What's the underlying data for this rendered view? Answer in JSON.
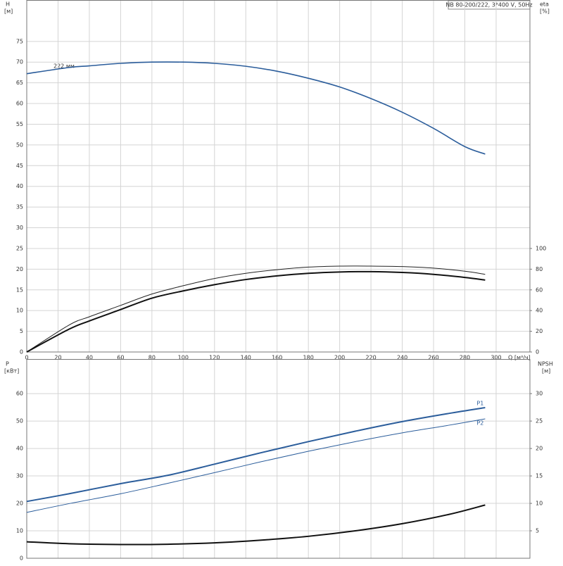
{
  "chart_data": [
    {
      "type": "line",
      "title": "NB 80-200/222, 3*400 V, 50Hz",
      "y_label": "H",
      "y_unit": "[м]",
      "y2_label": "eta",
      "y2_unit": "[%]",
      "x_label": "Q [м³/ч]",
      "annotation": "222 мм",
      "xlim": [
        0,
        321.6
      ],
      "xticks": [
        0,
        20,
        40,
        60,
        80,
        100,
        120,
        140,
        160,
        180,
        200,
        220,
        240,
        260,
        280,
        300
      ],
      "ylim": [
        0,
        85
      ],
      "yticks": [
        0,
        5,
        10,
        15,
        20,
        25,
        30,
        35,
        40,
        45,
        50,
        55,
        60,
        65,
        70,
        75
      ],
      "y2lim": [
        0,
        340
      ],
      "y2ticks": [
        0,
        20,
        40,
        60,
        80,
        100
      ],
      "grid": true,
      "x": [
        0,
        27,
        40,
        60,
        80,
        100,
        120,
        140,
        160,
        180,
        200,
        220,
        240,
        260,
        280,
        293
      ],
      "series": [
        {
          "color": "#2b5d9b",
          "line_width": 1.6,
          "values": [
            67.2,
            68.7,
            69.1,
            69.7,
            70.0,
            70.0,
            69.7,
            69.0,
            67.8,
            66.1,
            64.0,
            61.2,
            57.9,
            54.0,
            49.6,
            47.8
          ]
        },
        {
          "color": "#222222",
          "line_width": 1,
          "axis": "y2",
          "values": [
            0,
            26,
            34,
            45,
            56,
            64,
            71,
            76,
            79.5,
            82,
            83,
            83,
            82.5,
            81,
            78,
            75
          ]
        },
        {
          "color": "#111111",
          "line_width": 2,
          "axis": "y2",
          "values": [
            0,
            22,
            30,
            41,
            52,
            59,
            65,
            70,
            73.5,
            76,
            77.3,
            77.6,
            76.8,
            75,
            72,
            69.5
          ]
        }
      ]
    },
    {
      "type": "line",
      "y_label": "P",
      "y_unit": "[кВт]",
      "y2_label": "NPSH",
      "y2_unit": "[м]",
      "xlim": [
        0,
        321.6
      ],
      "ylim": [
        0,
        72.6
      ],
      "yticks": [
        0,
        10,
        20,
        30,
        40,
        50,
        60
      ],
      "y2lim": [
        0,
        36.3
      ],
      "y2ticks": [
        5,
        10,
        15,
        20,
        25,
        30
      ],
      "grid": true,
      "x": [
        0,
        27,
        60,
        90,
        120,
        150,
        180,
        210,
        240,
        270,
        293
      ],
      "series": [
        {
          "name": "P1",
          "color": "#2b5d9b",
          "line_width": 2,
          "values": [
            20.7,
            23.5,
            27.2,
            30.2,
            34.3,
            38.5,
            42.5,
            46.3,
            49.8,
            52.8,
            54.9
          ]
        },
        {
          "name": "P2",
          "color": "#2b5d9b",
          "line_width": 1,
          "values": [
            16.7,
            19.9,
            23.5,
            27.3,
            31.2,
            35.2,
            39.0,
            42.5,
            45.7,
            48.5,
            50.8
          ]
        },
        {
          "color": "#111111",
          "line_width": 2,
          "axis": "y2",
          "values": [
            3.0,
            2.65,
            2.5,
            2.55,
            2.8,
            3.3,
            4.0,
            5.0,
            6.3,
            8.0,
            9.7
          ]
        }
      ]
    }
  ]
}
